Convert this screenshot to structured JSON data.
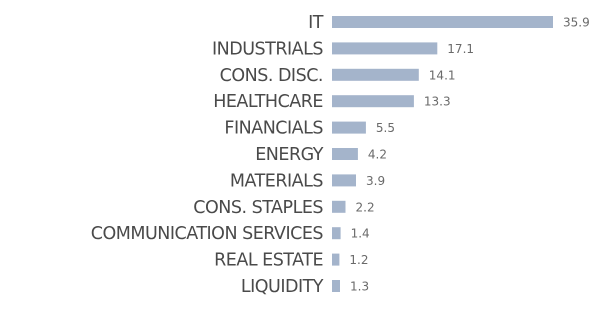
{
  "chart_data": {
    "type": "bar",
    "orientation": "horizontal",
    "categories": [
      "IT",
      "INDUSTRIALS",
      "CONS. DISC.",
      "HEALTHCARE",
      "FINANCIALS",
      "ENERGY",
      "MATERIALS",
      "CONS. STAPLES",
      "COMMUNICATION SERVICES",
      "REAL ESTATE",
      "LIQUIDITY"
    ],
    "values": [
      35.9,
      17.1,
      14.1,
      13.3,
      5.5,
      4.2,
      3.9,
      2.2,
      1.4,
      1.2,
      1.3
    ],
    "value_labels": [
      "35.9",
      "17.1",
      "14.1",
      "13.3",
      "5.5",
      "4.2",
      "3.9",
      "2.2",
      "1.4",
      "1.2",
      "1.3"
    ],
    "title": "",
    "xlabel": "",
    "ylabel": "",
    "xlim": [
      0,
      35.9
    ],
    "grid": false,
    "legend": "none",
    "bar_color": "#a4b4cb"
  }
}
